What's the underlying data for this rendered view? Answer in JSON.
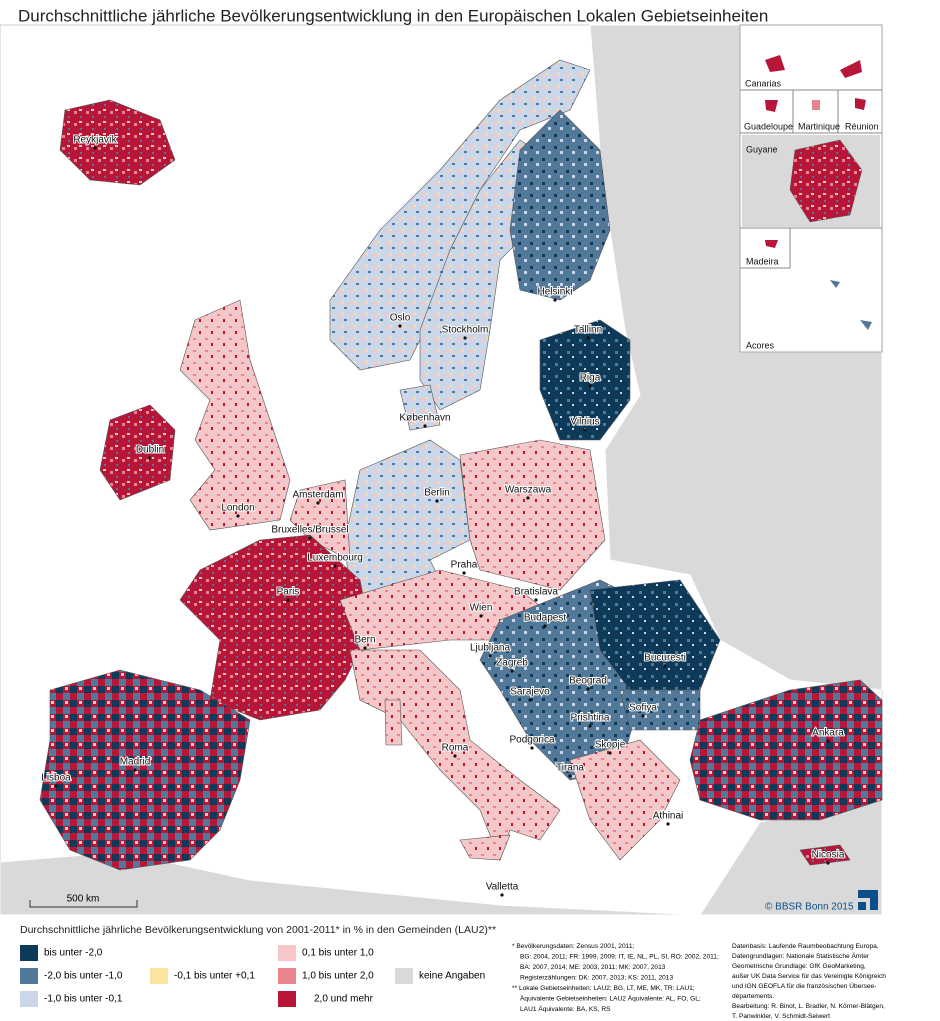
{
  "title": "Durchschnittliche jährliche Bevölkerungsentwicklung in den Europäischen Lokalen Gebietseinheiten",
  "cities": [
    "Reykjavík",
    "Oslo",
    "Stockholm",
    "Helsinki",
    "Tallinn",
    "Riga",
    "Vilnius",
    "København",
    "Dublin",
    "London",
    "Amsterdam",
    "Berlin",
    "Warszawa",
    "Bruxelles/Brussel",
    "Luxembourg",
    "Praha",
    "Paris",
    "Bratislava",
    "Wien",
    "Budapest",
    "Bern",
    "Ljubljana",
    "Zagreb",
    "Bucuresti",
    "Sarajevo",
    "Beograd",
    "Prishtina",
    "Sofiya",
    "Podgorica",
    "Skopje",
    "Tirana",
    "Roma",
    "Madrid",
    "Lisboa",
    "Ankara",
    "Athinai",
    "Nicosia",
    "Valletta"
  ],
  "insets": [
    "Canarias",
    "Guadeloupe",
    "Martinique",
    "Réunion",
    "Guyane",
    "Madeira",
    "Acores"
  ],
  "scale": "500 km",
  "copyright": "© BBSR Bonn 2015",
  "legend": {
    "title": "Durchschnittliche jährliche Bevölkerungsentwicklung von 2001-2011* in % in den Gemeinden (LAU2)**",
    "items": [
      {
        "label": "bis unter -2,0",
        "color": "#0e3a5a"
      },
      {
        "label": "-2,0 bis unter -1,0",
        "color": "#52789a"
      },
      {
        "label": "-1,0 bis unter -0,1",
        "color": "#c9d7e8"
      },
      {
        "label": "-0,1 bis unter +0,1",
        "color": "#fbe3a0"
      },
      {
        "label": "0,1 bis unter 1,0",
        "color": "#f7c6c6"
      },
      {
        "label": "1,0 bis unter 2,0",
        "color": "#e9838d"
      },
      {
        "label": "2,0 und mehr",
        "color": "#b81638"
      },
      {
        "label": "keine Angaben",
        "color": "#d9d9d9"
      }
    ]
  },
  "footnotes": [
    "* Bevölkerungsdaten: Zensus 2001, 2011;",
    "BG: 2004, 2011; FR: 1999, 2009; IT, IE, NL, PL, SI, RO: 2002, 2011;",
    "BA: 2007, 2014; ME: 2003, 2011; MK: 2007, 2013",
    "Registerzählungen: DK: 2007, 2013; KS: 2011, 2013",
    "** Lokale Gebietseinheiten: LAU2; BG, LT, ME, MK, TR: LAU1;",
    "Äquivalente Gebietseinheiten:  LAU2 Äquivalente: AL, FO, GL;",
    "LAU1 Äquivalente: BA, KS, RS"
  ],
  "credits": [
    "Datenbasis: Laufende Raumbeobachtung Europa,",
    "Datengrundlagen: Nationale Statistische Ämter",
    "Geometrische Grundlage: GfK GeoMarketing,",
    "außer UK Data Service für das Vereinigte Königreich",
    "und IGN GEOFLA für die französischen Übersee-",
    "départements.",
    "Bearbeitung: R. Binot, L. Bradler, N. Körner-Blätgen,",
    "T. Panwinkler, V. Schmidt-Seiwert"
  ]
}
